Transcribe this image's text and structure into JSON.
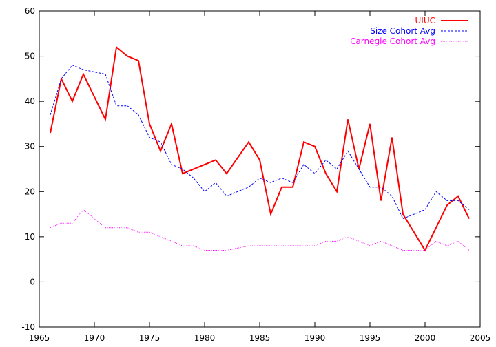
{
  "chart_data": {
    "type": "line",
    "title": "",
    "xlabel": "",
    "ylabel": "",
    "xlim": [
      1965,
      2005
    ],
    "ylim": [
      -10,
      60
    ],
    "xticks": [
      1965,
      1970,
      1975,
      1980,
      1985,
      1990,
      1995,
      2000,
      2005
    ],
    "yticks": [
      -10,
      0,
      10,
      20,
      30,
      40,
      50,
      60
    ],
    "grid": false,
    "legend_position": "top-right",
    "series": [
      {
        "name": "UIUC",
        "color": "#ff0000",
        "style": "solid",
        "x": [
          1966,
          1967,
          1968,
          1969,
          1971,
          1972,
          1973,
          1974,
          1975,
          1976,
          1977,
          1978,
          1981,
          1982,
          1984,
          1985,
          1986,
          1987,
          1988,
          1989,
          1990,
          1991,
          1992,
          1993,
          1994,
          1995,
          1996,
          1997,
          1998,
          2000,
          2002,
          2003,
          2004
        ],
        "y": [
          33,
          45,
          40,
          46,
          36,
          52,
          50,
          49,
          35,
          29,
          35,
          24,
          27,
          24,
          31,
          27,
          15,
          21,
          21,
          31,
          30,
          24,
          20,
          36,
          25,
          35,
          18,
          32,
          15,
          7,
          17,
          19,
          14
        ]
      },
      {
        "name": "Size Cohort Avg",
        "color": "#0000ff",
        "style": "dashed",
        "x": [
          1966,
          1967,
          1968,
          1969,
          1970,
          1971,
          1972,
          1973,
          1974,
          1975,
          1976,
          1977,
          1978,
          1979,
          1980,
          1981,
          1982,
          1983,
          1984,
          1985,
          1986,
          1987,
          1988,
          1989,
          1990,
          1991,
          1992,
          1993,
          1994,
          1995,
          1996,
          1997,
          1998,
          1999,
          2000,
          2001,
          2002,
          2003,
          2004
        ],
        "y": [
          37,
          45,
          48,
          47,
          46.5,
          46,
          39,
          39,
          37,
          32,
          31,
          26,
          25,
          23,
          20,
          22,
          19,
          20,
          21,
          23,
          22,
          23,
          22,
          26,
          24,
          27,
          25,
          29,
          25,
          21,
          21,
          19,
          14,
          15,
          16,
          20,
          18,
          18,
          16
        ]
      },
      {
        "name": "Carnegie Cohort Avg",
        "color": "#ff00ff",
        "style": "dotted",
        "x": [
          1966,
          1967,
          1968,
          1969,
          1970,
          1971,
          1972,
          1973,
          1974,
          1975,
          1976,
          1977,
          1978,
          1979,
          1980,
          1981,
          1982,
          1983,
          1984,
          1985,
          1986,
          1987,
          1988,
          1989,
          1990,
          1991,
          1992,
          1993,
          1994,
          1995,
          1996,
          1997,
          1998,
          1999,
          2000,
          2001,
          2002,
          2003,
          2004
        ],
        "y": [
          12,
          13,
          13,
          16,
          14,
          12,
          12,
          12,
          11,
          11,
          10,
          9,
          8,
          8,
          7,
          7,
          7,
          7.5,
          8,
          8,
          8,
          8,
          8,
          8,
          8,
          9,
          9,
          10,
          9,
          8,
          9,
          8,
          7,
          7,
          7,
          9,
          8,
          9,
          7
        ]
      }
    ]
  }
}
